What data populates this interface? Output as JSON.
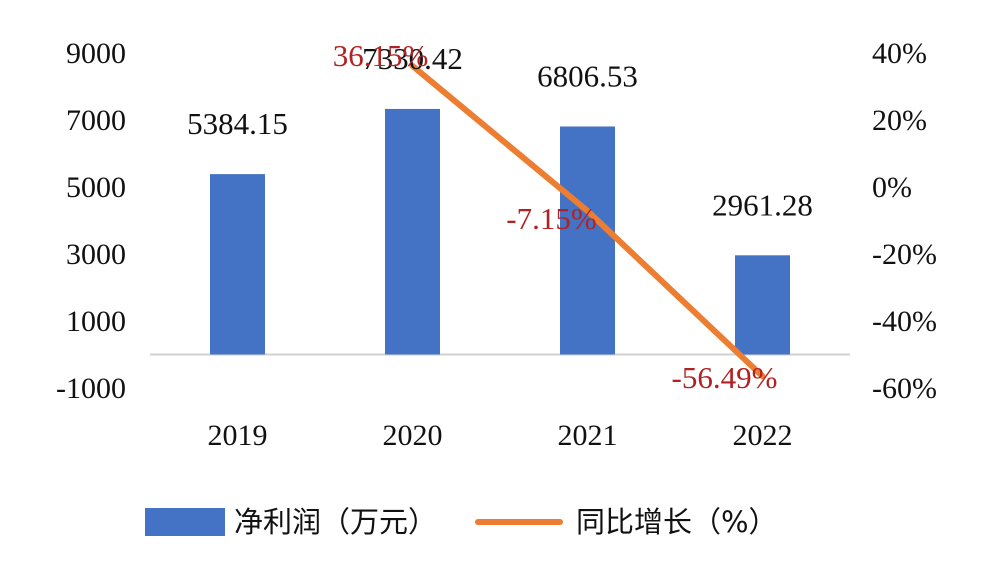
{
  "chart_data": {
    "type": "bar",
    "categories": [
      "2019",
      "2020",
      "2021",
      "2022"
    ],
    "series": [
      {
        "name": "净利润（万元）",
        "type": "bar",
        "axis": "left",
        "values": [
          5384.15,
          7330.42,
          6806.53,
          2961.28
        ],
        "labels": [
          "5384.15",
          "7330.42",
          "6806.53",
          "2961.28"
        ],
        "color": "#4472c4"
      },
      {
        "name": "同比增长（%）",
        "type": "line",
        "axis": "right",
        "x": [
          "2020",
          "2021",
          "2022"
        ],
        "values": [
          36.15,
          -7.15,
          -56.49
        ],
        "labels": [
          "36.15%",
          "-7.15%",
          "-56.49%"
        ],
        "color": "#ed7d31",
        "label_color": "#b22222"
      }
    ],
    "y_left": {
      "ylim": [
        -1000,
        9000
      ],
      "ticks": [
        9000,
        7000,
        5000,
        3000,
        1000,
        -1000
      ],
      "tick_labels": [
        "9000",
        "7000",
        "5000",
        "3000",
        "1000",
        "-1000"
      ]
    },
    "y_right": {
      "ylim": [
        -60,
        40
      ],
      "ticks": [
        40,
        20,
        0,
        -20,
        -40,
        -60
      ],
      "tick_labels": [
        "40%",
        "20%",
        "0%",
        "-20%",
        "-40%",
        "-60%"
      ]
    },
    "legend": {
      "position": "bottom",
      "items": [
        "净利润（万元）",
        "同比增长（%）"
      ]
    },
    "grid": false
  }
}
